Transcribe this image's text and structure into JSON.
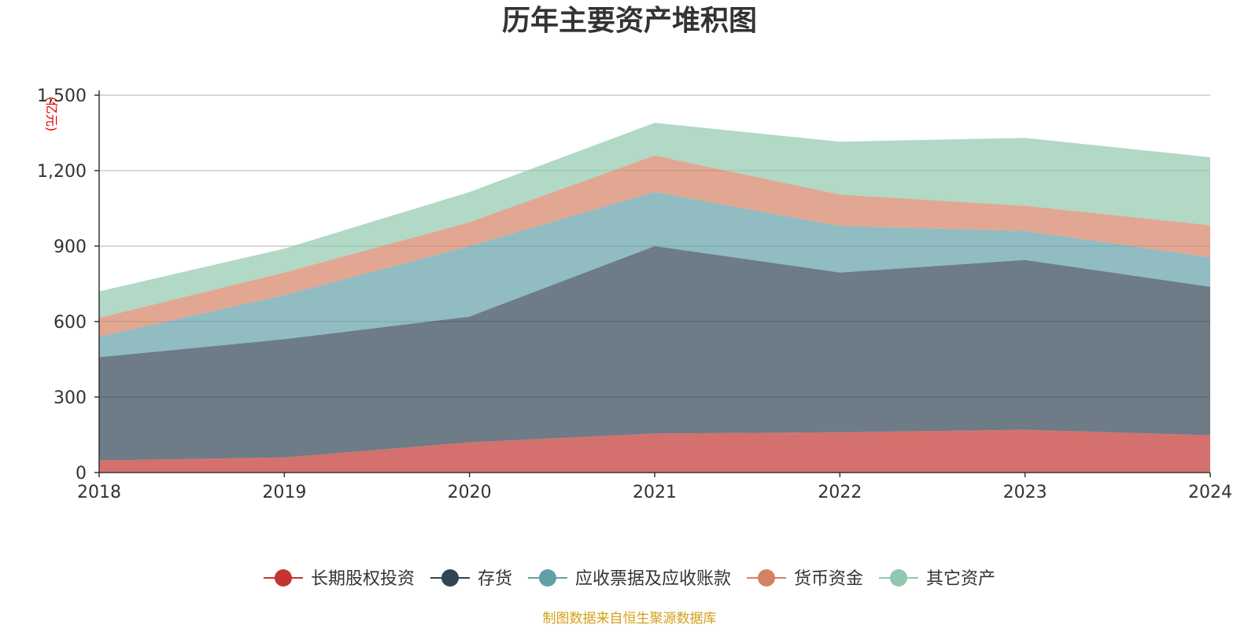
{
  "chart_data": {
    "type": "area",
    "stacked": true,
    "title": "历年主要资产堆积图",
    "unit_label": "(亿元)",
    "x": [
      "2018",
      "2019",
      "2020",
      "2021",
      "2022",
      "2023",
      "2024"
    ],
    "y_ticks": [
      "0",
      "300",
      "600",
      "900",
      "1,200",
      "1,500"
    ],
    "ylim": [
      0,
      1500
    ],
    "grid": true,
    "legend_position": "bottom",
    "series": [
      {
        "name": "长期股权投资",
        "color": "#c23531",
        "values": [
          48,
          60,
          120,
          155,
          160,
          170,
          148
        ]
      },
      {
        "name": "存货",
        "color": "#2f4554",
        "values": [
          410,
          470,
          500,
          745,
          635,
          675,
          590
        ]
      },
      {
        "name": "应收票据及应收账款",
        "color": "#61a0a8",
        "values": [
          82,
          175,
          280,
          215,
          185,
          115,
          117
        ]
      },
      {
        "name": "货币资金",
        "color": "#d48265",
        "values": [
          75,
          90,
          95,
          145,
          125,
          100,
          128
        ]
      },
      {
        "name": "其它资产",
        "color": "#91c7ae",
        "values": [
          105,
          95,
          120,
          130,
          210,
          270,
          270
        ]
      }
    ],
    "source_note": "制图数据来自恒生聚源数据库"
  }
}
